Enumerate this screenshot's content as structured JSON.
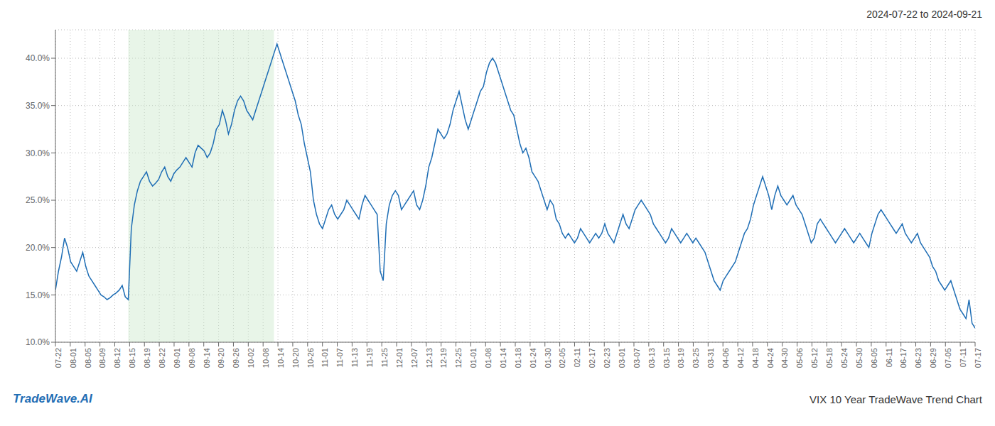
{
  "chart_data": {
    "type": "line",
    "title": "VIX 10 Year TradeWave Trend Chart",
    "subtitle": "2024-07-22 to 2024-09-21",
    "annotations": [
      "TradeWave.AI"
    ],
    "grid": true,
    "series": [
      {
        "name": "VIX",
        "color": "#1f6eb5",
        "values": [
          15.5,
          17.5,
          19.0,
          21.0,
          20.0,
          18.5,
          18.0,
          17.5,
          18.5,
          19.5,
          18.0,
          17.0,
          16.5,
          16.0,
          15.5,
          15.0,
          14.8,
          14.5,
          14.7,
          15.0,
          15.2,
          15.5,
          16.0,
          14.8,
          14.5,
          22.0,
          24.5,
          26.0,
          27.0,
          27.5,
          28.0,
          27.0,
          26.5,
          26.8,
          27.2,
          28.0,
          28.5,
          27.5,
          27.0,
          27.8,
          28.2,
          28.5,
          29.0,
          29.5,
          29.0,
          28.5,
          30.0,
          30.8,
          30.5,
          30.2,
          29.5,
          30.0,
          31.0,
          32.5,
          33.0,
          34.5,
          33.5,
          32.0,
          33.0,
          34.5,
          35.5,
          36.0,
          35.5,
          34.5,
          34.0,
          33.5,
          34.5,
          35.5,
          36.5,
          37.5,
          38.5,
          39.5,
          40.5,
          41.5,
          40.5,
          39.5,
          38.5,
          37.5,
          36.5,
          35.5,
          34.0,
          33.0,
          31.0,
          29.5,
          28.0,
          25.0,
          23.5,
          22.5,
          22.0,
          23.0,
          24.0,
          24.5,
          23.5,
          23.0,
          23.5,
          24.0,
          25.0,
          24.5,
          24.0,
          23.5,
          23.0,
          24.5,
          25.5,
          25.0,
          24.5,
          24.0,
          23.5,
          17.5,
          16.5,
          22.5,
          24.5,
          25.5,
          26.0,
          25.5,
          24.0,
          24.5,
          25.0,
          25.5,
          26.0,
          24.5,
          24.0,
          25.0,
          26.5,
          28.5,
          29.5,
          31.0,
          32.5,
          32.0,
          31.5,
          32.0,
          33.0,
          34.5,
          35.5,
          36.5,
          35.0,
          33.5,
          32.5,
          33.5,
          34.5,
          35.5,
          36.5,
          37.0,
          38.5,
          39.5,
          40.0,
          39.5,
          38.5,
          37.5,
          36.5,
          35.5,
          34.5,
          34.0,
          32.5,
          31.0,
          30.0,
          30.5,
          29.5,
          28.0,
          27.5,
          27.0,
          26.0,
          25.0,
          24.0,
          25.0,
          24.5,
          23.0,
          22.5,
          21.5,
          21.0,
          21.5,
          21.0,
          20.5,
          21.0,
          22.0,
          21.5,
          21.0,
          20.5,
          21.0,
          21.5,
          21.0,
          21.5,
          22.5,
          21.5,
          21.0,
          20.5,
          21.5,
          22.5,
          23.5,
          22.5,
          22.0,
          23.0,
          24.0,
          24.5,
          25.0,
          24.5,
          24.0,
          23.5,
          22.5,
          22.0,
          21.5,
          21.0,
          20.5,
          21.0,
          22.0,
          21.5,
          21.0,
          20.5,
          21.0,
          21.5,
          21.0,
          20.5,
          21.0,
          20.5,
          20.0,
          19.5,
          18.5,
          17.5,
          16.5,
          16.0,
          15.5,
          16.5,
          17.0,
          17.5,
          18.0,
          18.5,
          19.5,
          20.5,
          21.5,
          22.0,
          23.0,
          24.5,
          25.5,
          26.5,
          27.5,
          26.5,
          25.5,
          24.0,
          25.5,
          26.5,
          25.5,
          25.0,
          24.5,
          25.0,
          25.5,
          24.5,
          24.0,
          23.5,
          22.5,
          21.5,
          20.5,
          21.0,
          22.5,
          23.0,
          22.5,
          22.0,
          21.5,
          21.0,
          20.5,
          21.0,
          21.5,
          22.0,
          21.5,
          21.0,
          20.5,
          21.0,
          21.5,
          21.0,
          20.5,
          20.0,
          21.5,
          22.5,
          23.5,
          24.0,
          23.5,
          23.0,
          22.5,
          22.0,
          21.5,
          22.0,
          22.5,
          21.5,
          21.0,
          20.5,
          21.0,
          21.5,
          20.5,
          20.0,
          19.5,
          19.0,
          18.0,
          17.5,
          16.5,
          16.0,
          15.5,
          16.0,
          16.5,
          15.5,
          14.5,
          13.5,
          13.0,
          12.5,
          14.5,
          12.0,
          11.5
        ]
      }
    ],
    "shaded": {
      "x_start": 24,
      "x_end": 72,
      "color": "#cce8cc"
    },
    "xlim": [
      0,
      303
    ],
    "xticks": [
      {
        "value": 0,
        "label": "07-22"
      },
      {
        "value": 4.887,
        "label": "08-01"
      },
      {
        "value": 9.774,
        "label": "08-05"
      },
      {
        "value": 14.661,
        "label": "08-09"
      },
      {
        "value": 19.548,
        "label": "08-12"
      },
      {
        "value": 24.435,
        "label": "08-15"
      },
      {
        "value": 29.323,
        "label": "08-19"
      },
      {
        "value": 34.21,
        "label": "08-22"
      },
      {
        "value": 39.097,
        "label": "09-01"
      },
      {
        "value": 43.984,
        "label": "09-08"
      },
      {
        "value": 48.871,
        "label": "09-14"
      },
      {
        "value": 53.758,
        "label": "09-20"
      },
      {
        "value": 58.645,
        "label": "09-26"
      },
      {
        "value": 63.532,
        "label": "10-02"
      },
      {
        "value": 68.419,
        "label": "10-08"
      },
      {
        "value": 73.306,
        "label": "10-14"
      },
      {
        "value": 78.194,
        "label": "10-20"
      },
      {
        "value": 83.081,
        "label": "10-26"
      },
      {
        "value": 87.968,
        "label": "11-01"
      },
      {
        "value": 92.855,
        "label": "11-07"
      },
      {
        "value": 97.742,
        "label": "11-13"
      },
      {
        "value": 102.629,
        "label": "11-19"
      },
      {
        "value": 107.516,
        "label": "11-25"
      },
      {
        "value": 112.403,
        "label": "12-01"
      },
      {
        "value": 117.29,
        "label": "12-07"
      },
      {
        "value": 122.177,
        "label": "12-13"
      },
      {
        "value": 127.065,
        "label": "12-19"
      },
      {
        "value": 131.952,
        "label": "12-25"
      },
      {
        "value": 136.839,
        "label": "01-01"
      },
      {
        "value": 141.726,
        "label": "01-08"
      },
      {
        "value": 146.613,
        "label": "01-14"
      },
      {
        "value": 151.5,
        "label": "01-18"
      },
      {
        "value": 156.387,
        "label": "01-24"
      },
      {
        "value": 161.274,
        "label": "01-30"
      },
      {
        "value": 166.161,
        "label": "02-05"
      },
      {
        "value": 171.048,
        "label": "02-11"
      },
      {
        "value": 175.935,
        "label": "02-17"
      },
      {
        "value": 180.823,
        "label": "02-23"
      },
      {
        "value": 185.71,
        "label": "03-01"
      },
      {
        "value": 190.597,
        "label": "03-07"
      },
      {
        "value": 195.484,
        "label": "03-13"
      },
      {
        "value": 200.371,
        "label": "03-15"
      },
      {
        "value": 205.258,
        "label": "03-19"
      },
      {
        "value": 210.145,
        "label": "03-25"
      },
      {
        "value": 215.032,
        "label": "03-31"
      },
      {
        "value": 219.919,
        "label": "04-06"
      },
      {
        "value": 224.806,
        "label": "04-12"
      },
      {
        "value": 229.694,
        "label": "04-18"
      },
      {
        "value": 234.581,
        "label": "04-24"
      },
      {
        "value": 239.468,
        "label": "04-30"
      },
      {
        "value": 244.355,
        "label": "05-06"
      },
      {
        "value": 249.242,
        "label": "05-12"
      },
      {
        "value": 254.129,
        "label": "05-18"
      },
      {
        "value": 259.016,
        "label": "05-24"
      },
      {
        "value": 263.903,
        "label": "05-30"
      },
      {
        "value": 268.79,
        "label": "06-05"
      },
      {
        "value": 273.677,
        "label": "06-11"
      },
      {
        "value": 278.565,
        "label": "06-17"
      },
      {
        "value": 283.452,
        "label": "06-23"
      },
      {
        "value": 288.339,
        "label": "06-29"
      },
      {
        "value": 293.226,
        "label": "07-05"
      },
      {
        "value": 298.113,
        "label": "07-11"
      },
      {
        "value": 303,
        "label": "07-17"
      }
    ],
    "ylim": [
      10.0,
      43.0
    ],
    "yticks": [
      {
        "value": 10.0,
        "label": "10.0%"
      },
      {
        "value": 15.0,
        "label": "15.0%"
      },
      {
        "value": 20.0,
        "label": "20.0%"
      },
      {
        "value": 25.0,
        "label": "25.0%"
      },
      {
        "value": 30.0,
        "label": "30.0%"
      },
      {
        "value": 35.0,
        "label": "35.0%"
      },
      {
        "value": 40.0,
        "label": "40.0%"
      }
    ]
  }
}
